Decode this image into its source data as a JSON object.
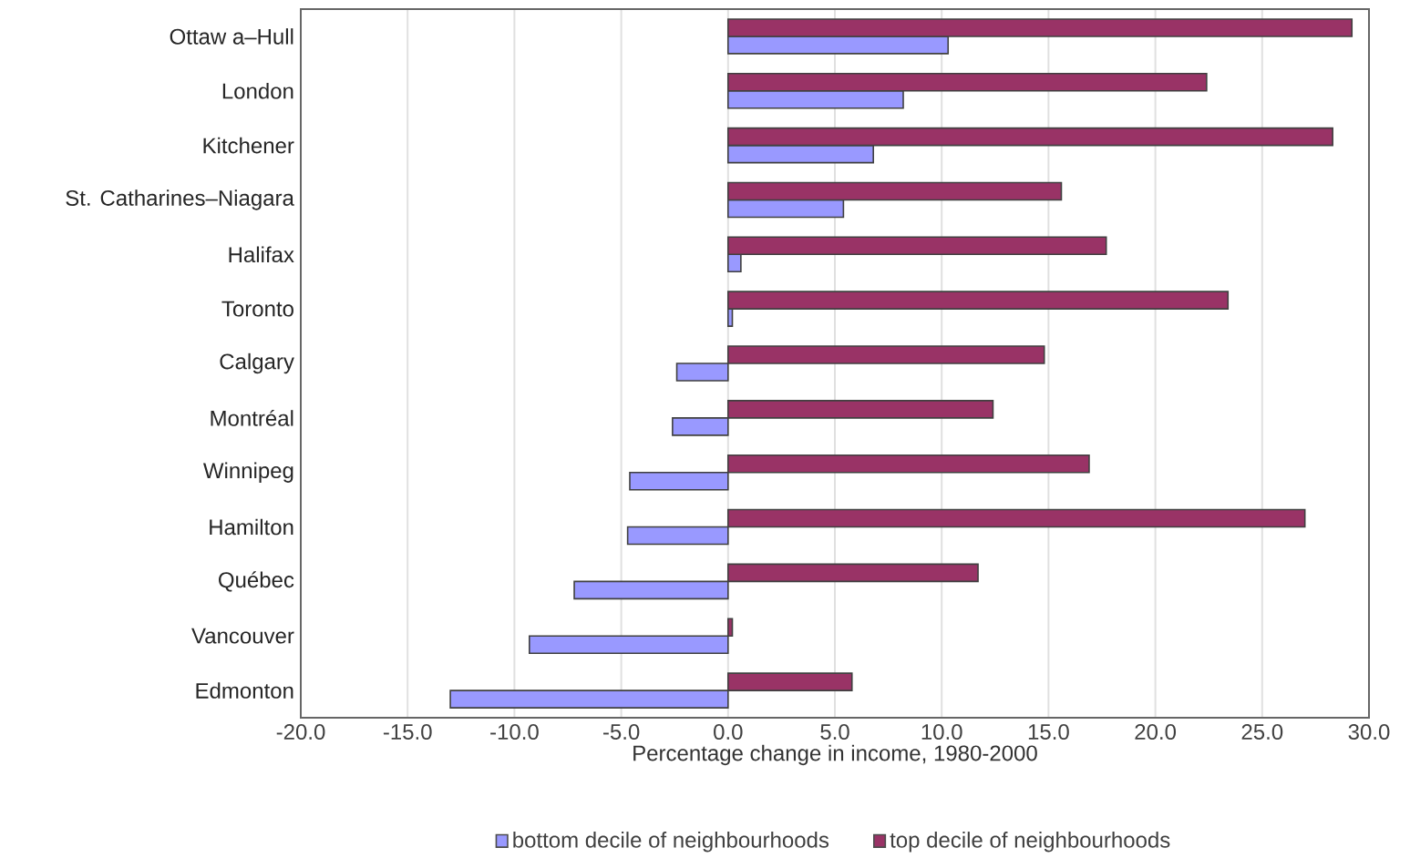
{
  "chart_data": {
    "type": "bar",
    "orientation": "horizontal",
    "xlabel": "Percentage change in income, 1980-2000",
    "categories": [
      "Ottaw a–Hull",
      "London",
      "Kitchener",
      "St. Catharines–Niagara",
      "Halifax",
      "Toronto",
      "Calgary",
      "Montréal",
      "Winnipeg",
      "Hamilton",
      "Québec",
      "Vancouver",
      "Edmonton"
    ],
    "series": [
      {
        "name": "bottom decile of neighbourhoods",
        "color": "#9999ff",
        "values": [
          10.3,
          8.2,
          6.8,
          5.4,
          0.6,
          0.2,
          -2.4,
          -2.6,
          -4.6,
          -4.7,
          -7.2,
          -9.3,
          -13.0
        ]
      },
      {
        "name": "top decile of neighbourhoods",
        "color": "#993366",
        "values": [
          29.2,
          22.4,
          28.3,
          15.6,
          17.7,
          23.4,
          14.8,
          12.4,
          16.9,
          27.0,
          11.7,
          0.2,
          5.8
        ]
      }
    ],
    "xlim": [
      -20,
      30
    ],
    "xticks": [
      {
        "value": -20,
        "label": "-20.0"
      },
      {
        "value": -15,
        "label": "-15.0"
      },
      {
        "value": -10,
        "label": "-10.0"
      },
      {
        "value": -5,
        "label": "-5.0"
      },
      {
        "value": 0,
        "label": "0.0"
      },
      {
        "value": 5,
        "label": "5.0"
      },
      {
        "value": 10,
        "label": "10.0"
      },
      {
        "value": 15,
        "label": "15.0"
      },
      {
        "value": 20,
        "label": "20.0"
      },
      {
        "value": 25,
        "label": "25.0"
      },
      {
        "value": 30,
        "label": "30.0"
      }
    ],
    "grid": "x",
    "legend": "bottom"
  }
}
